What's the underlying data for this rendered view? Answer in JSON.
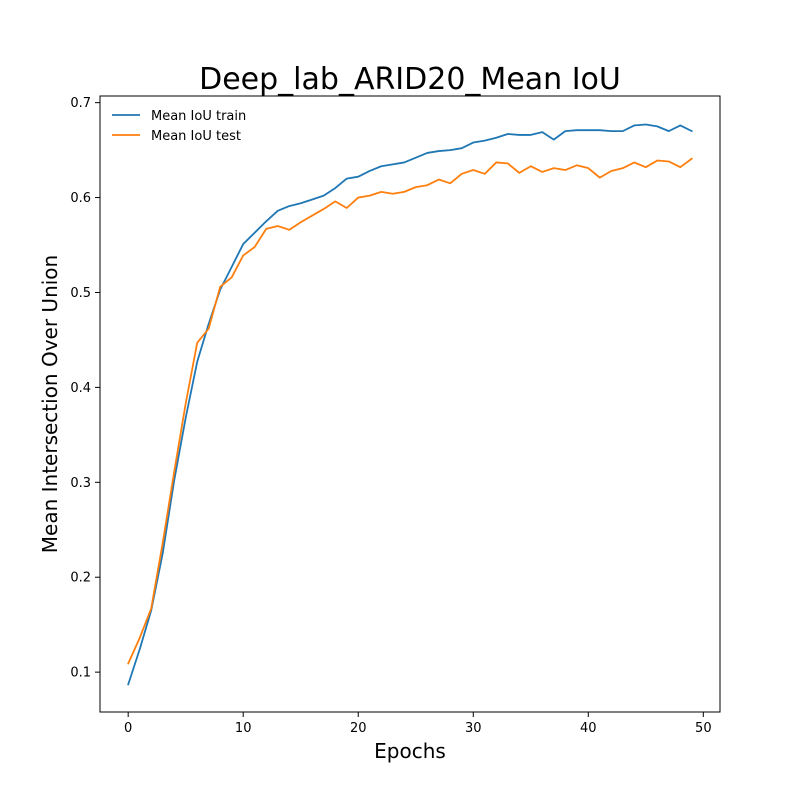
{
  "chart_data": {
    "type": "line",
    "title": "Deep_lab_ARID20_Mean IoU",
    "xlabel": "Epochs",
    "ylabel": "Mean Intersection Over Union",
    "xlim": [
      -2.45,
      51.45
    ],
    "ylim": [
      0.058,
      0.707
    ],
    "xticks": [
      0,
      10,
      20,
      30,
      40,
      50
    ],
    "yticks": [
      0.1,
      0.2,
      0.3,
      0.4,
      0.5,
      0.6,
      0.7
    ],
    "grid": false,
    "legend_position": "top-left",
    "x": [
      0,
      1,
      2,
      3,
      4,
      5,
      6,
      7,
      8,
      9,
      10,
      11,
      12,
      13,
      14,
      15,
      16,
      17,
      18,
      19,
      20,
      21,
      22,
      23,
      24,
      25,
      26,
      27,
      28,
      29,
      30,
      31,
      32,
      33,
      34,
      35,
      36,
      37,
      38,
      39,
      40,
      41,
      42,
      43,
      44,
      45,
      46,
      47,
      48,
      49
    ],
    "series": [
      {
        "name": "Mean IoU train",
        "color": "#1f77b4",
        "values": [
          0.087,
          0.124,
          0.165,
          0.225,
          0.302,
          0.368,
          0.427,
          0.467,
          0.503,
          0.527,
          0.551,
          0.563,
          0.575,
          0.586,
          0.591,
          0.594,
          0.598,
          0.602,
          0.61,
          0.62,
          0.622,
          0.628,
          0.633,
          0.635,
          0.637,
          0.642,
          0.647,
          0.649,
          0.65,
          0.652,
          0.658,
          0.66,
          0.663,
          0.667,
          0.666,
          0.666,
          0.669,
          0.661,
          0.67,
          0.671,
          0.671,
          0.671,
          0.67,
          0.67,
          0.676,
          0.677,
          0.675,
          0.67,
          0.676,
          0.67
        ]
      },
      {
        "name": "Mean IoU test",
        "color": "#ff7f0e",
        "values": [
          0.109,
          0.136,
          0.167,
          0.236,
          0.311,
          0.383,
          0.447,
          0.462,
          0.506,
          0.516,
          0.539,
          0.548,
          0.567,
          0.57,
          0.566,
          0.574,
          0.581,
          0.588,
          0.596,
          0.589,
          0.6,
          0.602,
          0.606,
          0.604,
          0.606,
          0.611,
          0.613,
          0.619,
          0.615,
          0.625,
          0.629,
          0.625,
          0.637,
          0.636,
          0.626,
          0.633,
          0.627,
          0.631,
          0.629,
          0.634,
          0.631,
          0.621,
          0.628,
          0.631,
          0.637,
          0.632,
          0.639,
          0.638,
          0.632,
          0.641
        ]
      }
    ]
  }
}
